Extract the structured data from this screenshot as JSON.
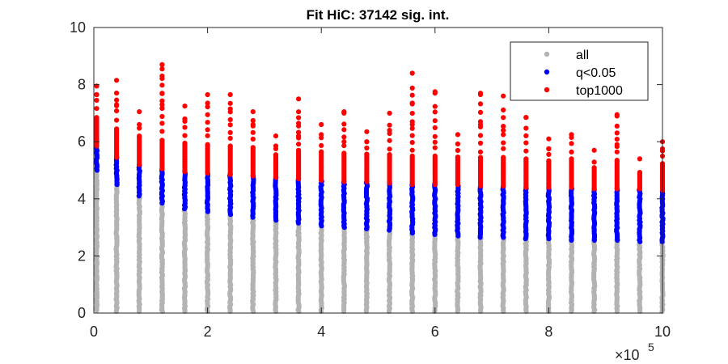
{
  "chart_data": {
    "type": "scatter",
    "title": "Fit HiC: 37142 sig. int.",
    "xlabel": "",
    "ylabel": "",
    "x_exponent_label": "×10",
    "x_exponent_power": "5",
    "xlim": [
      0,
      10
    ],
    "ylim": [
      0,
      10
    ],
    "xticks": [
      0,
      2,
      4,
      6,
      8,
      10
    ],
    "yticks": [
      0,
      2,
      4,
      6,
      8,
      10
    ],
    "grid": false,
    "legend_position": "top-right",
    "x": [
      0.05,
      0.4,
      0.8,
      1.2,
      1.6,
      2.0,
      2.4,
      2.8,
      3.2,
      3.6,
      4.0,
      4.4,
      4.8,
      5.2,
      5.6,
      6.0,
      6.4,
      6.8,
      7.2,
      7.6,
      8.0,
      8.4,
      8.8,
      9.2,
      9.6,
      10.0
    ],
    "series": [
      {
        "name": "all",
        "color": "#b3b3b3",
        "y_min": [
          0.1,
          0.05,
          0.05,
          0.05,
          0.05,
          0.05,
          0.05,
          0.05,
          0.05,
          0.05,
          0.05,
          0.05,
          0.05,
          0.05,
          0.05,
          0.05,
          0.05,
          0.05,
          0.05,
          0.05,
          0.05,
          0.05,
          0.05,
          0.05,
          0.05,
          0.05
        ],
        "y_max": [
          5.0,
          4.5,
          4.1,
          3.85,
          3.65,
          3.55,
          3.45,
          3.35,
          3.25,
          3.15,
          3.05,
          3.0,
          2.95,
          2.9,
          2.8,
          2.75,
          2.7,
          2.65,
          2.65,
          2.6,
          2.6,
          2.55,
          2.55,
          2.55,
          2.5,
          2.5
        ]
      },
      {
        "name": "q<0.05",
        "color": "#0000ff",
        "y_min": [
          5.0,
          4.5,
          4.1,
          3.85,
          3.65,
          3.55,
          3.45,
          3.35,
          3.25,
          3.15,
          3.05,
          3.0,
          2.95,
          2.9,
          2.8,
          2.75,
          2.7,
          2.65,
          2.65,
          2.6,
          2.6,
          2.55,
          2.55,
          2.55,
          2.5,
          2.5
        ],
        "y_max": [
          5.85,
          5.45,
          5.2,
          5.05,
          4.95,
          4.9,
          4.85,
          4.8,
          4.75,
          4.7,
          4.65,
          4.6,
          4.6,
          4.55,
          4.5,
          4.5,
          4.5,
          4.45,
          4.45,
          4.4,
          4.4,
          4.4,
          4.35,
          4.35,
          4.35,
          4.3
        ]
      },
      {
        "name": "top1000",
        "color": "#ff0000",
        "y_min": [
          5.85,
          5.45,
          5.2,
          5.05,
          4.95,
          4.9,
          4.85,
          4.8,
          4.75,
          4.7,
          4.65,
          4.6,
          4.6,
          4.55,
          4.5,
          4.5,
          4.5,
          4.45,
          4.45,
          4.4,
          4.4,
          4.4,
          4.35,
          4.35,
          4.35,
          4.3
        ],
        "y_max": [
          7.95,
          8.15,
          7.05,
          8.7,
          7.25,
          7.65,
          7.65,
          7.05,
          6.2,
          7.5,
          6.6,
          7.05,
          6.35,
          7.0,
          8.4,
          7.75,
          6.25,
          7.7,
          7.6,
          6.85,
          6.1,
          6.25,
          5.7,
          6.95,
          5.4,
          6.0
        ],
        "outliers": [
          [
            0.05,
            7.65
          ],
          [
            0.4,
            7.3
          ],
          [
            0.8,
            6.6
          ],
          [
            1.2,
            8.55
          ],
          [
            1.2,
            8.3
          ],
          [
            1.2,
            7.7
          ],
          [
            1.2,
            7.3
          ],
          [
            1.6,
            6.8
          ],
          [
            2.0,
            7.35
          ],
          [
            2.4,
            7.15
          ],
          [
            2.8,
            6.6
          ],
          [
            3.2,
            5.85
          ],
          [
            3.6,
            6.55
          ],
          [
            3.6,
            6.2
          ],
          [
            4.0,
            6.25
          ],
          [
            4.4,
            7.0
          ],
          [
            4.4,
            6.0
          ],
          [
            4.8,
            6.0
          ],
          [
            5.2,
            6.4
          ],
          [
            5.6,
            7.35
          ],
          [
            5.6,
            6.6
          ],
          [
            6.0,
            7.7
          ],
          [
            6.8,
            7.65
          ],
          [
            6.8,
            6.6
          ],
          [
            7.2,
            6.4
          ],
          [
            7.6,
            6.85
          ],
          [
            8.0,
            5.75
          ],
          [
            8.4,
            6.15
          ],
          [
            9.2,
            6.9
          ],
          [
            9.2,
            5.9
          ],
          [
            10.0,
            5.75
          ]
        ]
      }
    ]
  }
}
